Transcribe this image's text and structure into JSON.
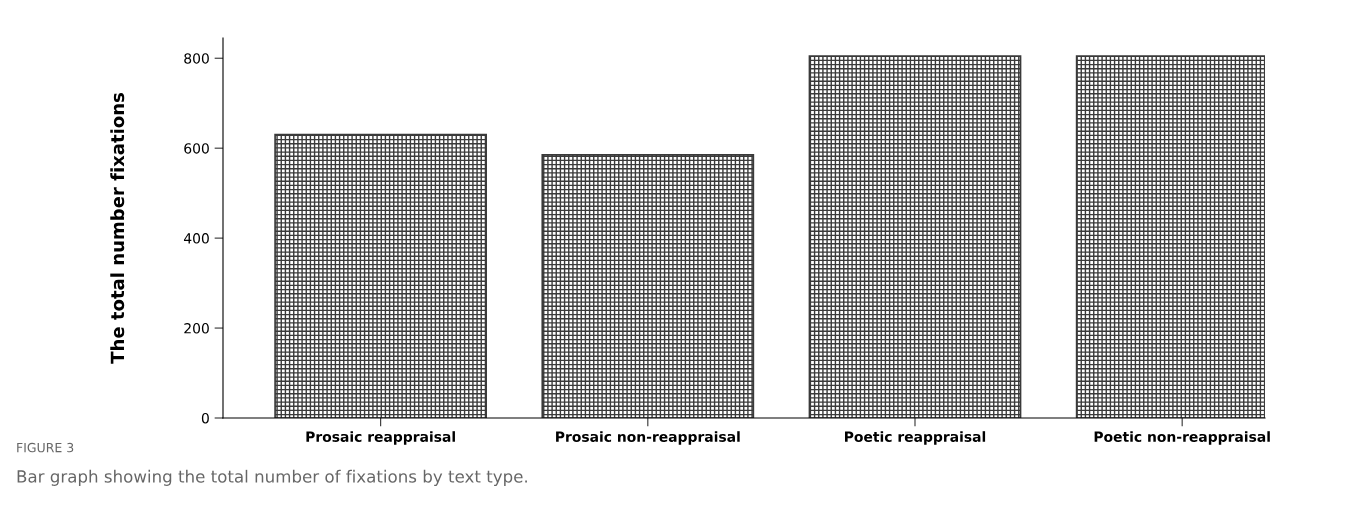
{
  "chart_data": {
    "type": "bar",
    "ylabel": "The total number fixations",
    "categories": [
      "Prosaic reappraisal",
      "Prosaic non-reappraisal",
      "Poetic reappraisal",
      "Poetic non-reappraisal"
    ],
    "values": [
      630,
      585,
      805,
      805
    ],
    "color": "#3a3a3a",
    "ylim": [
      0,
      845
    ],
    "yticks": [
      0,
      200,
      400,
      600,
      800
    ],
    "grid": false,
    "annotations": [
      "FIGURE 3",
      "Bar graph showing the total number of fixations by text type."
    ]
  }
}
